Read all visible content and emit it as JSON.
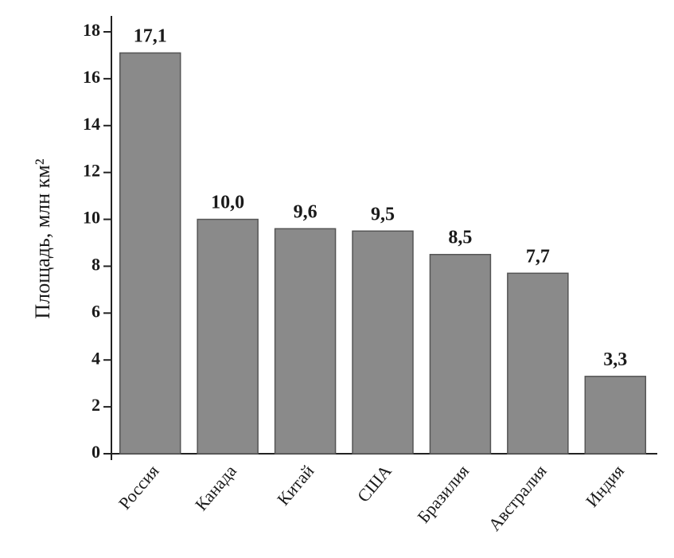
{
  "chart_data": {
    "type": "bar",
    "y_label": "Площадь, млн км²",
    "categories": [
      "Россия",
      "Канада",
      "Китай",
      "США",
      "Бразилия",
      "Австралия",
      "Индия"
    ],
    "values": [
      17.1,
      10.0,
      9.6,
      9.5,
      8.5,
      7.7,
      3.3
    ],
    "value_labels": [
      "17,1",
      "10,0",
      "9,6",
      "9,5",
      "8,5",
      "7,7",
      "3,3"
    ],
    "color": "#8a8a8a",
    "ylim": [
      0,
      18
    ],
    "yticks": [
      0,
      2,
      4,
      6,
      8,
      10,
      12,
      14,
      16,
      18
    ]
  }
}
